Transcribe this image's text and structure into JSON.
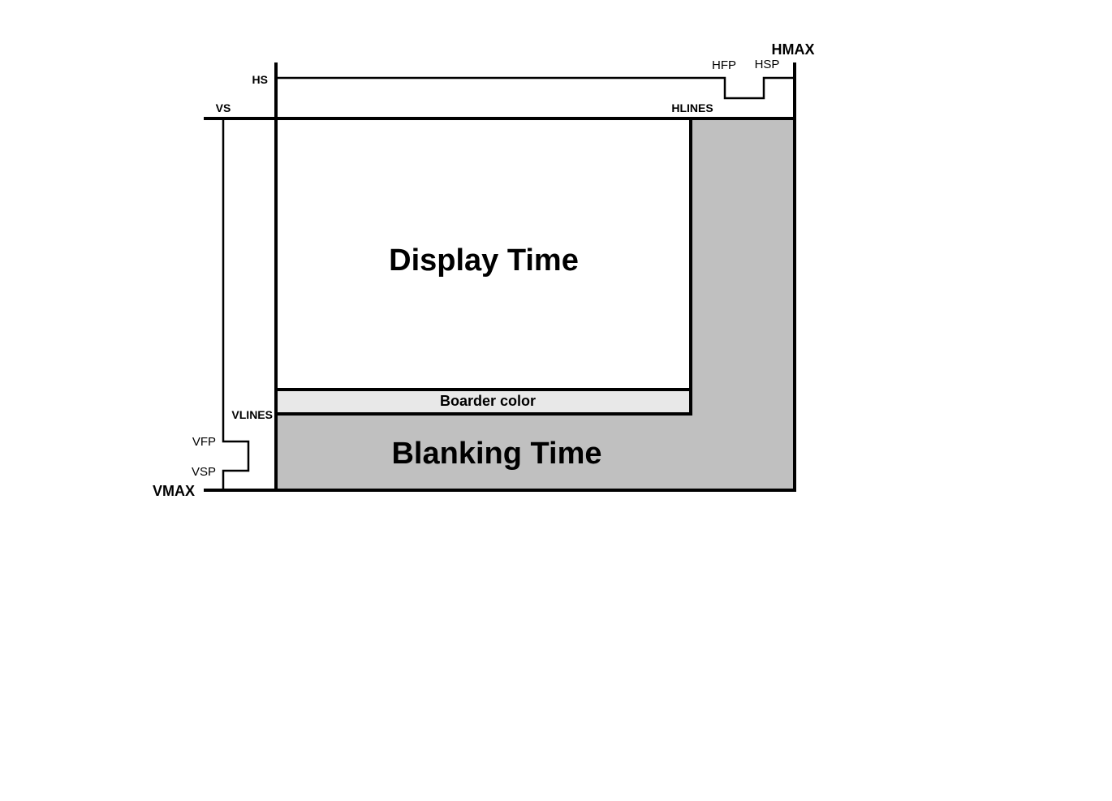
{
  "labels": {
    "hmax": "HMAX",
    "hs": "HS",
    "hfp": "HFP",
    "hsp": "HSP",
    "vs": "VS",
    "hlines": "HLINES",
    "display_time": "Display Time",
    "border_color": "Boarder color",
    "vlines": "VLINES",
    "vfp": "VFP",
    "vsp": "VSP",
    "vmax": "VMAX",
    "blanking_time": "Blanking Time"
  },
  "colors": {
    "line": "#000000",
    "display_area": "#ffffff",
    "border_band": "#e8e8e8",
    "blanking_area": "#c0c0c0"
  }
}
